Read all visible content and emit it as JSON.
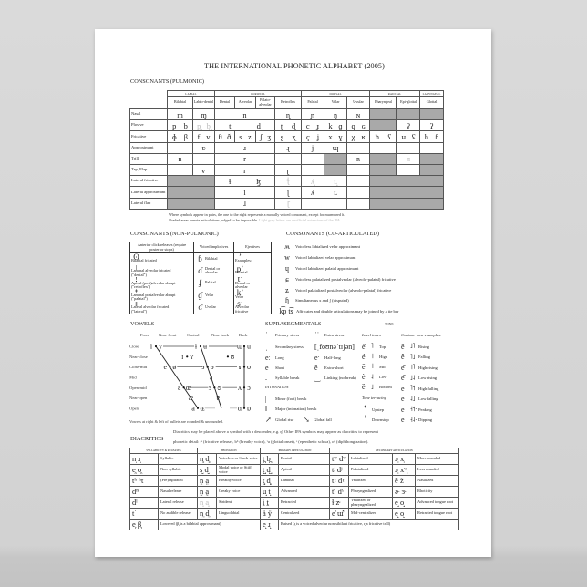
{
  "title": "THE INTERNATIONAL PHONETIC ALPHABET (2005)",
  "pulmonic": {
    "heading": "CONSONANTS (PULMONIC)",
    "groups": [
      {
        "label": "LABIAL",
        "span": 2
      },
      {
        "label": "CORONAL",
        "span": 4
      },
      {
        "label": "DORSAL",
        "span": 3
      },
      {
        "label": "RADICAL",
        "span": 2
      },
      {
        "label": "LARYNGEAL",
        "span": 1
      }
    ],
    "places": [
      "Bilabial",
      "Labio-dental",
      "Dental",
      "Alveolar",
      "Palato-alveolar",
      "Retroflex",
      "Palatal",
      "Velar",
      "Uvular",
      "Pharyngeal",
      "Epi-glottal",
      "Glottal"
    ],
    "rows": [
      {
        "manner": "Nasal",
        "cells": [
          {
            "t": "m"
          },
          {
            "t": "ɱ"
          },
          {
            "t": "n",
            "span": 3
          },
          {
            "t": "ɳ"
          },
          {
            "t": "ɲ"
          },
          {
            "t": "ŋ"
          },
          {
            "t": "ɴ"
          },
          {
            "shaded": true
          },
          {
            "shaded": true
          },
          {
            "shaded": true
          }
        ]
      },
      {
        "manner": "Plosive",
        "cells": [
          {
            "l": "p",
            "r": "b"
          },
          {
            "l": "p̪",
            "r": "b̪",
            "grey": true
          },
          {
            "l": "t",
            "r": "d",
            "span": 3
          },
          {
            "l": "ʈ",
            "r": "ɖ"
          },
          {
            "l": "c",
            "r": "ɟ"
          },
          {
            "l": "k",
            "r": "ɡ"
          },
          {
            "l": "q",
            "r": "ɢ"
          },
          {
            "shaded": true
          },
          {
            "t": "ʡ"
          },
          {
            "t": "ʔ"
          }
        ]
      },
      {
        "manner": "Fricative",
        "cells": [
          {
            "l": "ɸ",
            "r": "β"
          },
          {
            "l": "f",
            "r": "v"
          },
          {
            "l": "θ",
            "r": "ð"
          },
          {
            "l": "s",
            "r": "z"
          },
          {
            "l": "ʃ",
            "r": "ʒ"
          },
          {
            "l": "ʂ",
            "r": "ʐ"
          },
          {
            "l": "ç",
            "r": "ʝ"
          },
          {
            "l": "x",
            "r": "ɣ"
          },
          {
            "l": "χ",
            "r": "ʁ"
          },
          {
            "l": "ħ",
            "r": "ʕ"
          },
          {
            "l": "ʜ",
            "r": "ʢ"
          },
          {
            "l": "h",
            "r": "ɦ"
          }
        ]
      },
      {
        "manner": "Approximant",
        "cells": [
          {
            "t": ""
          },
          {
            "t": "ʋ"
          },
          {
            "t": "ɹ",
            "span": 3
          },
          {
            "t": "ɻ"
          },
          {
            "t": "j"
          },
          {
            "t": "ɰ"
          },
          {
            "t": ""
          },
          {
            "t": ""
          },
          {
            "t": ""
          },
          {
            "t": ""
          }
        ]
      },
      {
        "manner": "Trill",
        "cells": [
          {
            "t": "ʙ"
          },
          {
            "t": ""
          },
          {
            "t": "r",
            "span": 3
          },
          {
            "t": ""
          },
          {
            "t": ""
          },
          {
            "shaded": true
          },
          {
            "t": "ʀ"
          },
          {
            "shaded": true
          },
          {
            "t": "ᴙ",
            "grey": true
          },
          {
            "shaded": true
          }
        ]
      },
      {
        "manner": "Tap, Flap",
        "cells": [
          {
            "t": ""
          },
          {
            "t": "ⱱ"
          },
          {
            "t": "ɾ",
            "span": 3
          },
          {
            "t": "ɽ"
          },
          {
            "t": ""
          },
          {
            "shaded": true
          },
          {
            "t": ""
          },
          {
            "shaded": true
          },
          {
            "t": ""
          },
          {
            "shaded": true
          }
        ]
      },
      {
        "manner": "Lateral fricative",
        "cells": [
          {
            "shaded": true,
            "span": 2
          },
          {
            "l": "ɬ",
            "r": "ɮ",
            "span": 3
          },
          {
            "t": "ꞎ",
            "grey": true
          },
          {
            "t": "ʎ̝",
            "grey": true
          },
          {
            "t": "ʟ̝",
            "grey": true
          },
          {
            "t": ""
          },
          {
            "shaded": true,
            "span": 3
          }
        ]
      },
      {
        "manner": "Lateral approximant",
        "cells": [
          {
            "shaded": true,
            "span": 2
          },
          {
            "t": "l",
            "span": 3
          },
          {
            "t": "ɭ"
          },
          {
            "t": "ʎ"
          },
          {
            "t": "ʟ"
          },
          {
            "t": ""
          },
          {
            "shaded": true,
            "span": 3
          }
        ]
      },
      {
        "manner": "Lateral flap",
        "cells": [
          {
            "shaded": true,
            "span": 2
          },
          {
            "t": "ɺ",
            "span": 3
          },
          {
            "t": "ɭ̆",
            "grey": true
          },
          {
            "t": ""
          },
          {
            "t": ""
          },
          {
            "t": ""
          },
          {
            "shaded": true,
            "span": 3
          }
        ]
      }
    ],
    "note1": "Where symbols appear in pairs, the one to the right represents a modally voiced consonant, except for murmured ɦ.",
    "note2": "Shaded areas denote articulations judged to be impossible.",
    "note3": "Light grey letters are unofficial extensions of the IPA."
  },
  "nonpulmonic": {
    "heading": "CONSONANTS (NON-PULMONIC)",
    "columns": [
      {
        "header": "Anterior click releases (require posterior stops)",
        "items": [
          {
            "s": "ʘ",
            "l": "Bilabial fricated"
          },
          {
            "s": "ǀ",
            "l": "Laminal alveolar fricated (\"dental\")"
          },
          {
            "s": "ǃ",
            "l": "Apical (post)alveolar abrupt (\"retroflex\")"
          },
          {
            "s": "ǂ",
            "l": "Laminal postalveolar abrupt (\"palatal\")"
          },
          {
            "s": "ǁ",
            "l": "Lateral alveolar fricated (\"lateral\")"
          }
        ]
      },
      {
        "header": "Voiced implosives",
        "items": [
          {
            "s": "ɓ",
            "l": "Bilabial"
          },
          {
            "s": "ɗ",
            "l": "Dental or alveolar"
          },
          {
            "s": "ʄ",
            "l": "Palatal"
          },
          {
            "s": "ɠ",
            "l": "Velar"
          },
          {
            "s": "ʛ",
            "l": "Uvular"
          }
        ]
      },
      {
        "header": "Ejectives",
        "items": [
          {
            "s": "ʼ",
            "l": "Examples:"
          },
          {
            "s": "pʼ",
            "l": "Bilabial"
          },
          {
            "s": "tʼ",
            "l": "Dental or alveolar"
          },
          {
            "s": "kʼ",
            "l": "Velar"
          },
          {
            "s": "sʼ",
            "l": "Alveolar fricative"
          }
        ]
      }
    ]
  },
  "coarticulated": {
    "heading": "CONSONANTS (CO-ARTICULATED)",
    "items": [
      {
        "s": "ʍ",
        "l": "Voiceless labialized velar approximant"
      },
      {
        "s": "w",
        "l": "Voiced labialized velar approximant"
      },
      {
        "s": "ɥ",
        "l": "Voiced labialized palatal approximant"
      },
      {
        "s": "ɕ",
        "l": "Voiceless palatalized postalveolar (alveolo-palatal) fricative"
      },
      {
        "s": "ʑ",
        "l": "Voiced palatalized postalveolar (alveolo-palatal) fricative"
      },
      {
        "s": "ɧ",
        "l": "Simultaneous x and ʃ  (disputed)"
      },
      {
        "s": "k͡p t͡s",
        "l": "Affricates and double articulations may be joined by a tie bar"
      }
    ]
  },
  "vowels": {
    "heading": "VOWELS",
    "backness": [
      "Front",
      "Near-front",
      "Central",
      "Near-back",
      "Back"
    ],
    "heights": [
      "Close",
      "Near-close",
      "Close-mid",
      "Mid",
      "Open-mid",
      "Near-open",
      "Open"
    ],
    "symbols": [
      {
        "v": "i",
        "h": 0,
        "b": 0,
        "side": "l"
      },
      {
        "v": "y",
        "h": 0,
        "b": 0,
        "side": "r"
      },
      {
        "v": "ɨ",
        "h": 0,
        "b": 2,
        "side": "l"
      },
      {
        "v": "ʉ",
        "h": 0,
        "b": 2,
        "side": "r"
      },
      {
        "v": "ɯ",
        "h": 0,
        "b": 4,
        "side": "l"
      },
      {
        "v": "u",
        "h": 0,
        "b": 4,
        "side": "r"
      },
      {
        "v": "ɪ",
        "h": 1,
        "b": 1,
        "side": "l"
      },
      {
        "v": "ʏ",
        "h": 1,
        "b": 1,
        "side": "r"
      },
      {
        "v": "ʊ",
        "h": 1,
        "b": 3,
        "side": "r"
      },
      {
        "v": "e",
        "h": 2,
        "b": 0,
        "side": "l"
      },
      {
        "v": "ø",
        "h": 2,
        "b": 0,
        "side": "r"
      },
      {
        "v": "ɘ",
        "h": 2,
        "b": 2,
        "side": "l"
      },
      {
        "v": "ɵ",
        "h": 2,
        "b": 2,
        "side": "r"
      },
      {
        "v": "ɤ",
        "h": 2,
        "b": 4,
        "side": "l"
      },
      {
        "v": "o",
        "h": 2,
        "b": 4,
        "side": "r"
      },
      {
        "v": "ə",
        "h": 3,
        "b": 2,
        "side": "c"
      },
      {
        "v": "ɛ",
        "h": 4,
        "b": 0,
        "side": "l"
      },
      {
        "v": "œ",
        "h": 4,
        "b": 0,
        "side": "r"
      },
      {
        "v": "ɜ",
        "h": 4,
        "b": 2,
        "side": "l"
      },
      {
        "v": "ɞ",
        "h": 4,
        "b": 2,
        "side": "r"
      },
      {
        "v": "ʌ",
        "h": 4,
        "b": 4,
        "side": "l"
      },
      {
        "v": "ɔ",
        "h": 4,
        "b": 4,
        "side": "r"
      },
      {
        "v": "æ",
        "h": 5,
        "b": 0,
        "side": "c"
      },
      {
        "v": "ɐ",
        "h": 5,
        "b": 2,
        "side": "c"
      },
      {
        "v": "a",
        "h": 6,
        "b": 0,
        "side": "l"
      },
      {
        "v": "ɶ",
        "h": 6,
        "b": 0,
        "side": "r"
      },
      {
        "v": "ɑ",
        "h": 6,
        "b": 4,
        "side": "l"
      },
      {
        "v": "ɒ",
        "h": 6,
        "b": 4,
        "side": "r"
      }
    ],
    "note": "Vowels at right & left of bullets are rounded & unrounded."
  },
  "suprasegmentals": {
    "heading": "SUPRASEGMENTALS",
    "items": [
      {
        "s": "ˈ",
        "l": "Primary stress"
      },
      {
        "s": "ˈˈ",
        "l": "Extra stress"
      },
      {
        "s": "ˌ",
        "l": "Secondary stress"
      },
      {
        "s": "[ˌfoʊnəˈtɪʃən]",
        "l": ""
      },
      {
        "s": "eː",
        "l": "Long"
      },
      {
        "s": "eˑ",
        "l": "Half-long"
      },
      {
        "s": "e",
        "l": "Short"
      },
      {
        "s": "ĕ",
        "l": "Extra-short"
      },
      {
        "s": ".",
        "l": "Syllable break"
      },
      {
        "s": "‿",
        "l": "Linking (no break)"
      }
    ],
    "intonation_heading": "INTONATION",
    "intonation": [
      {
        "s": "|",
        "l": "Minor (foot) break"
      },
      {
        "s": "‖",
        "l": "Major (intonation) break"
      },
      {
        "s": "↗",
        "l": "Global rise"
      },
      {
        "s": "↘",
        "l": "Global fall"
      }
    ]
  },
  "tone": {
    "heading": "TONE",
    "level_heading": "Level tones",
    "level": [
      {
        "e": "e̋",
        "t": "˥",
        "l": "Top"
      },
      {
        "e": "é",
        "t": "˦",
        "l": "High"
      },
      {
        "e": "ē",
        "t": "˧",
        "l": "Mid"
      },
      {
        "e": "è",
        "t": "˨",
        "l": "Low"
      },
      {
        "e": "ȅ",
        "t": "˩",
        "l": "Bottom"
      }
    ],
    "terracing_heading": "Tone terracing",
    "terracing": [
      {
        "t": "ꜛ",
        "l": "Upstep"
      },
      {
        "t": "ꜜ",
        "l": "Downstep"
      }
    ],
    "contour_heading": "Contour-tone examples:",
    "contour": [
      {
        "e": "ě",
        "t": "˩˥",
        "l": "Rising"
      },
      {
        "e": "ê",
        "t": "˥˩",
        "l": "Falling"
      },
      {
        "e": "e᷄",
        "t": "˦˥",
        "l": "High rising"
      },
      {
        "e": "e᷅",
        "t": "˩˨",
        "l": "Low rising"
      },
      {
        "e": "e᷇",
        "t": "˥˦",
        "l": "High falling"
      },
      {
        "e": "e᷆",
        "t": "˨˩",
        "l": "Low falling"
      },
      {
        "e": "e᷈",
        "t": "˧˦˧",
        "l": "Peaking"
      },
      {
        "e": "e᷉",
        "t": "˧˨˧",
        "l": "Dipping"
      }
    ]
  },
  "diacritics": {
    "heading": "DIACRITICS",
    "intro1": "Diacritics may be placed above a symbol with a descender, e.g. ŋ̊. Other IPA symbols may appear as diacritics to represent",
    "intro2": "phonetic detail: tˢ (fricative release), bʱ (breathy voice), ˀa (glottal onset), ᵊ (epenthetic schwa), oᶷ (diphthongization).",
    "headers": [
      {
        "label": "SYLLABICITY & RELEASES",
        "span": 2
      },
      {
        "label": "PHONATION",
        "span": 2
      },
      {
        "label": "PRIMARY ARTICULATION",
        "span": 2
      },
      {
        "label": "SECONDARY ARTICULATION",
        "span": 4
      }
    ],
    "rows": [
      [
        {
          "s": "n̩ ɹ̩"
        },
        {
          "l": "Syllabic"
        },
        {
          "s": "n̥ d̥"
        },
        {
          "l": "Voiceless or Slack voice"
        },
        {
          "s": "t̪ b̪"
        },
        {
          "l": "Dental"
        },
        {
          "s": "tʷ dʷ"
        },
        {
          "l": "Labialized"
        },
        {
          "s": "ɔ̹ x̹"
        },
        {
          "l": "More rounded"
        }
      ],
      [
        {
          "s": "e̯ o̯"
        },
        {
          "l": "Non-syllabic"
        },
        {
          "s": "s̬ d̬"
        },
        {
          "l": "Modal voice or Stiff voice"
        },
        {
          "s": "t̺ d̺"
        },
        {
          "l": "Apical"
        },
        {
          "s": "tʲ dʲ"
        },
        {
          "l": "Palatalized"
        },
        {
          "s": "ɔ̜ xʷ̜"
        },
        {
          "l": "Less rounded"
        }
      ],
      [
        {
          "s": "tʰ ʰt"
        },
        {
          "l": "(Pre)aspirated"
        },
        {
          "s": "n̤ a̤"
        },
        {
          "l": "Breathy voice"
        },
        {
          "s": "t̻ d̻"
        },
        {
          "l": "Laminal"
        },
        {
          "s": "tˠ dˠ"
        },
        {
          "l": "Velarized"
        },
        {
          "s": "ẽ z̃"
        },
        {
          "l": "Nasalized"
        }
      ],
      [
        {
          "s": "dⁿ"
        },
        {
          "l": "Nasal release"
        },
        {
          "s": "n̰ a̰"
        },
        {
          "l": "Creaky voice"
        },
        {
          "s": "u̟ t̟"
        },
        {
          "l": "Advanced"
        },
        {
          "s": "tˤ dˤ"
        },
        {
          "l": "Pharyngealized"
        },
        {
          "s": "ɚ ɝ"
        },
        {
          "l": "Rhoticity"
        }
      ],
      [
        {
          "s": "dˡ"
        },
        {
          "l": "Lateral release"
        },
        {
          "s": "n͈ a͈",
          "grey": true
        },
        {
          "l": "Strident"
        },
        {
          "s": "i̠ t̠"
        },
        {
          "l": "Retracted"
        },
        {
          "s": "ɫ z̴"
        },
        {
          "l": "Velarized or pharyngealized"
        },
        {
          "s": "e̘ o̘"
        },
        {
          "l": "Advanced tongue root"
        }
      ],
      [
        {
          "s": "t̚"
        },
        {
          "l": "No audible release"
        },
        {
          "s": "n̼ d̼"
        },
        {
          "l": "Linguolabial"
        },
        {
          "s": "ä ÿ"
        },
        {
          "l": "Centralized"
        },
        {
          "s": "e̽ ɯ̽"
        },
        {
          "l": "Mid-centralized"
        },
        {
          "s": "e̙ o̙"
        },
        {
          "l": "Retracted tongue root"
        }
      ]
    ],
    "last": [
      {
        "s": "e̞ β̞"
      },
      {
        "l": "Lowered   (β̞ is a bilabial approximant)",
        "span": 3
      },
      {
        "s": "e̝ ɹ̝"
      },
      {
        "l": "Raised   (ɹ̝ is a voiced alveolar non-sibilant fricative, r̝ a fricative trill)",
        "span": 5
      }
    ]
  }
}
